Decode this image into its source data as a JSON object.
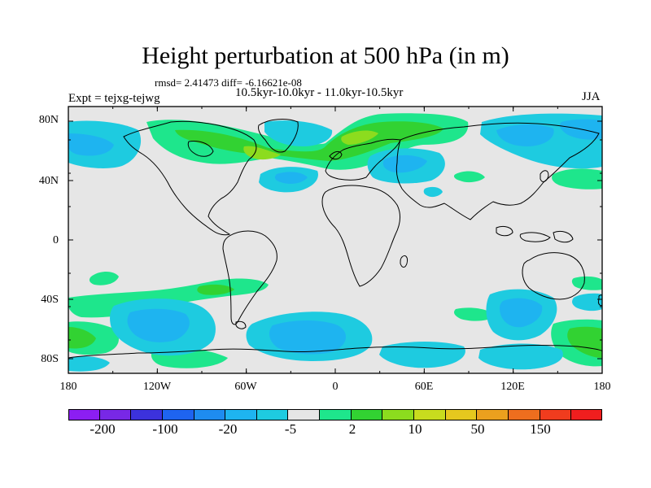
{
  "title": "Height perturbation at 500 hPa (in m)",
  "stats": "rmsd= 2.41473 diff= -6.16621e-08",
  "period": "10.5kyr-10.0kyr - 11.0kyr-10.5kyr",
  "experiment": "Expt = tejxg-tejwg",
  "season": "JJA",
  "axes": {
    "y_ticks": [
      "80N",
      "40N",
      "0",
      "40S",
      "80S"
    ],
    "x_ticks": [
      "180",
      "120W",
      "60W",
      "0",
      "60E",
      "120E",
      "180"
    ]
  },
  "colorbar": {
    "colors": [
      "#8c1ef2",
      "#7828e6",
      "#3c32dc",
      "#1e64f0",
      "#1e8cf0",
      "#1eb4f0",
      "#1ecbe0",
      "#e6e6e6",
      "#1ee68c",
      "#32d232",
      "#8cdc1e",
      "#c8dc1e",
      "#e6c81e",
      "#eba01e",
      "#ee6e1e",
      "#f03c1e",
      "#f01e1e"
    ],
    "labels": [
      "-200",
      "-100",
      "-20",
      "-5",
      "2",
      "10",
      "50",
      "150"
    ]
  },
  "palette": {
    "neutral": "#e6e6e6",
    "light_blue": "#1ecbe0",
    "mid_blue": "#1eb4f0",
    "light_green": "#1ee68c",
    "green": "#32d232",
    "yellow_green": "#8cdc1e"
  }
}
